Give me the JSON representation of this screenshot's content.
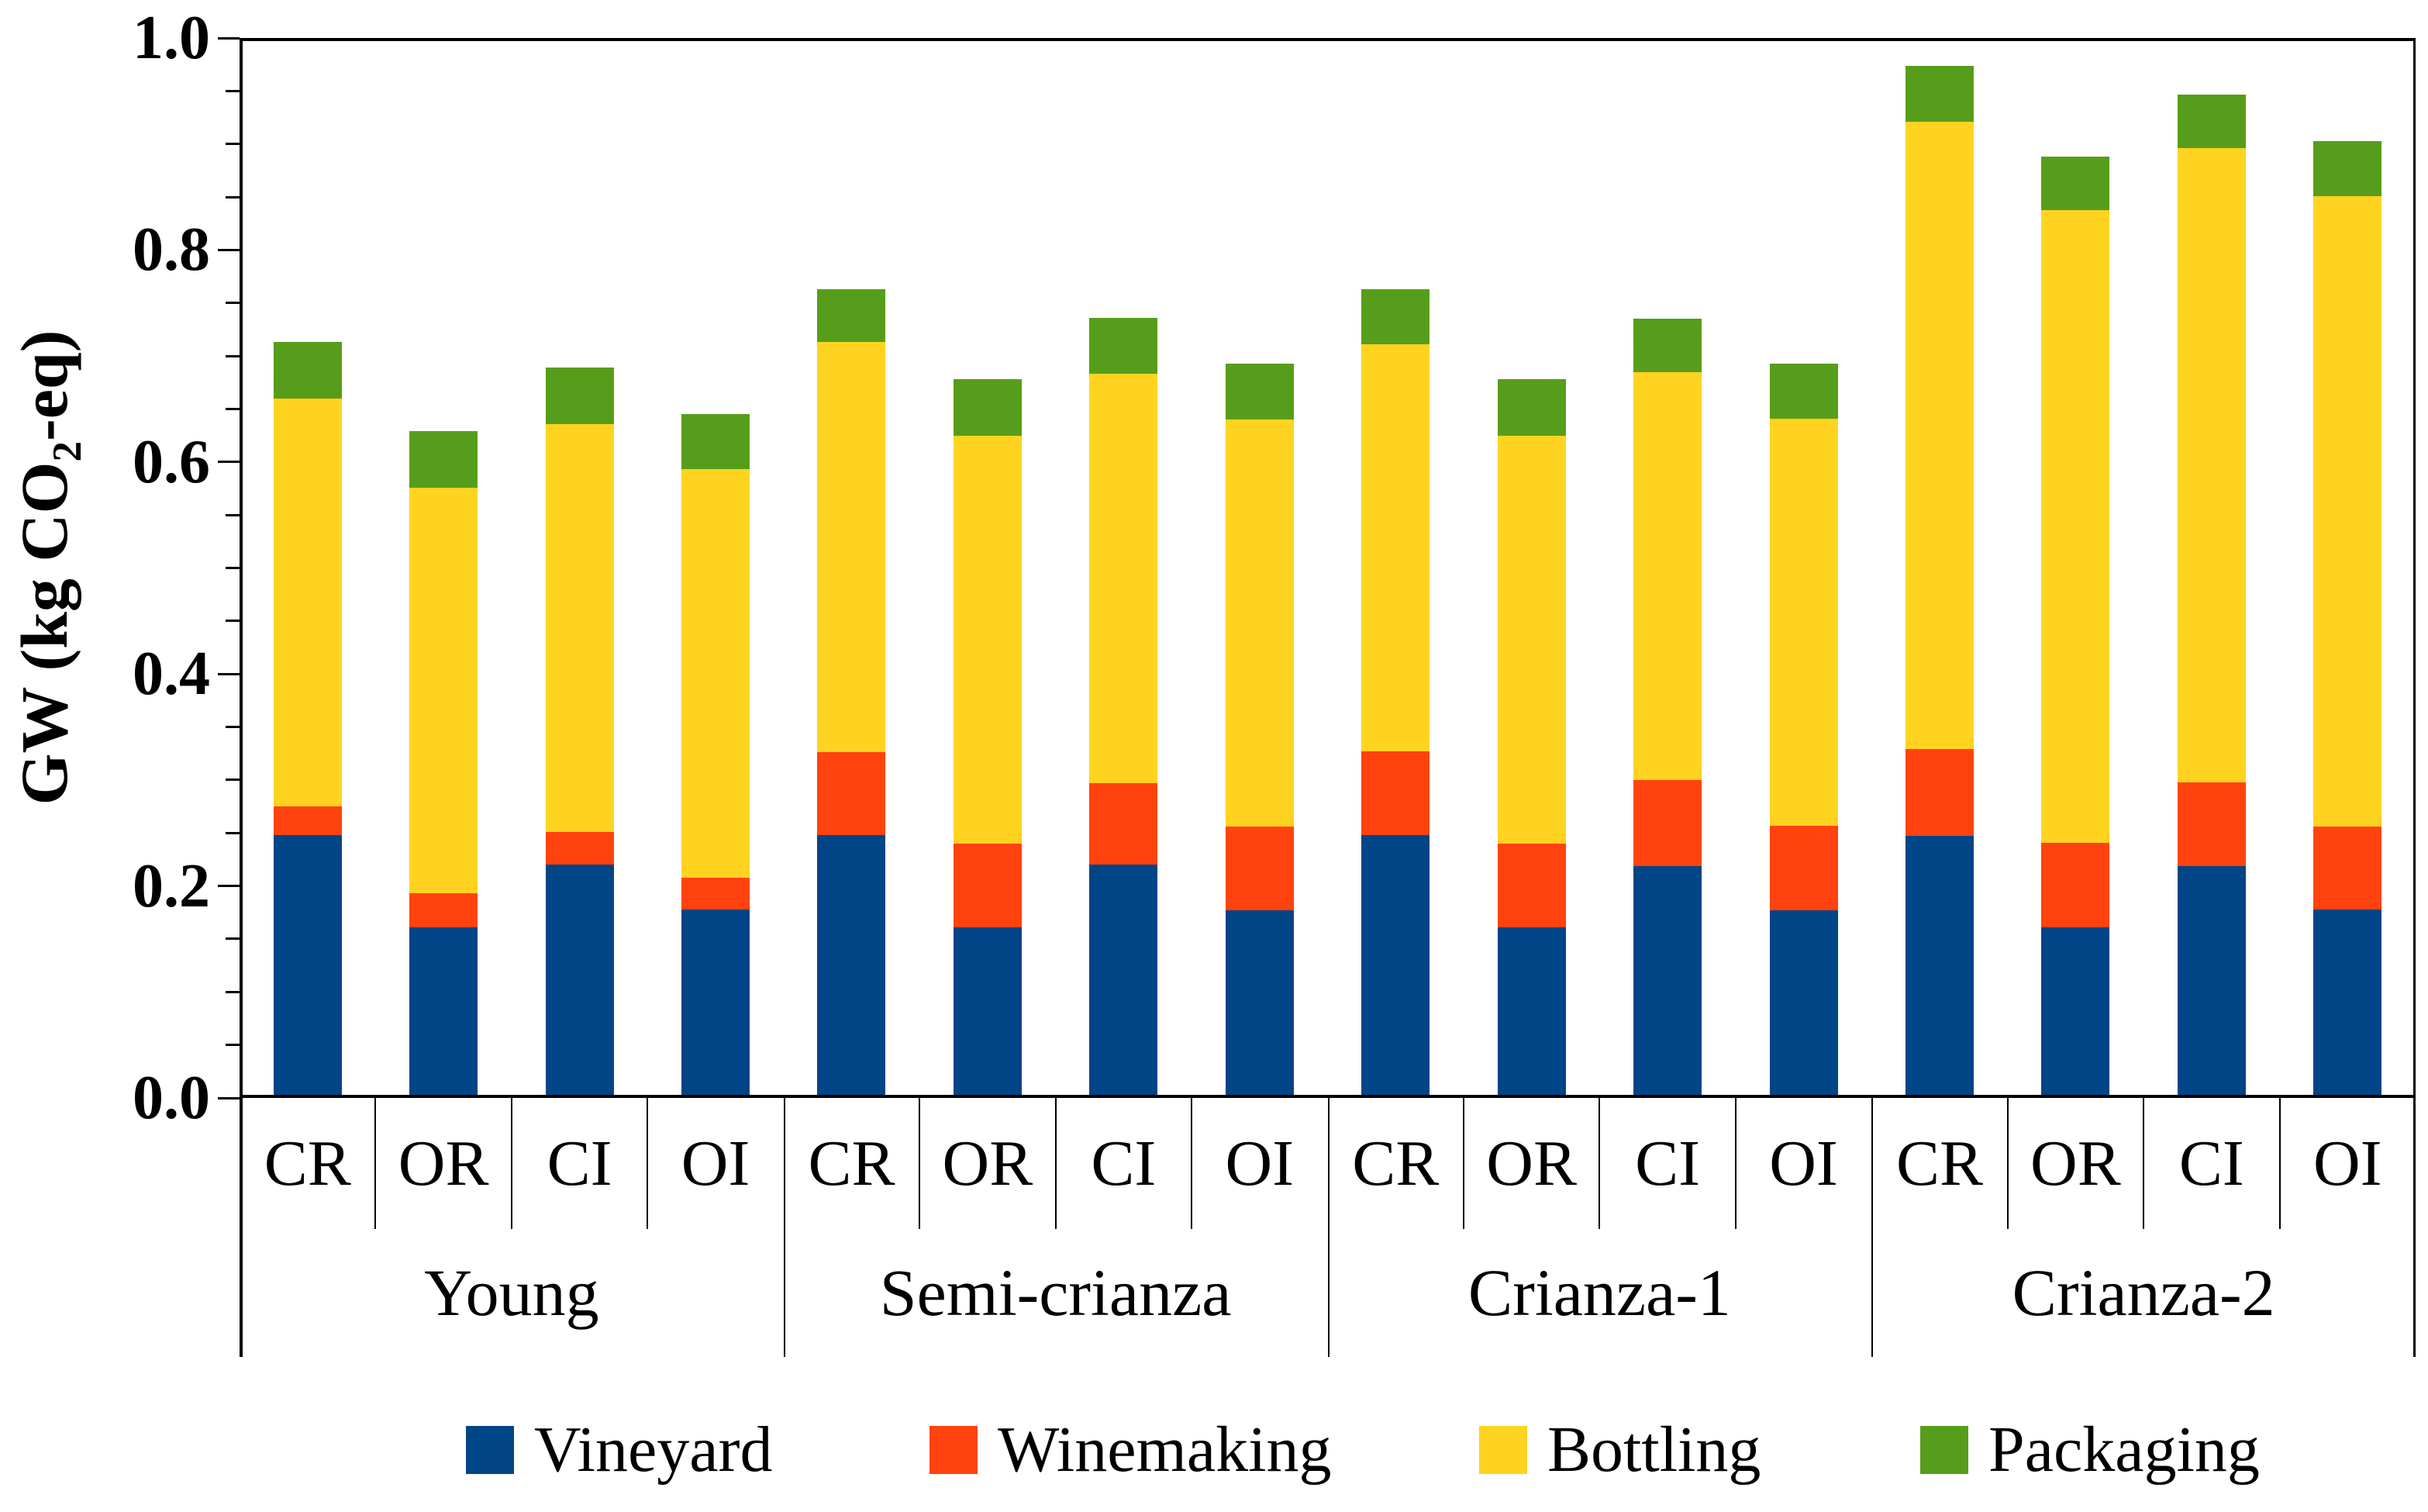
{
  "figure": {
    "background": "#ffffff",
    "axis_color": "#000000",
    "ylabel_prefix": "GW (kg CO",
    "ylabel_sub": "2",
    "ylabel_suffix": "-eq)"
  },
  "chart_data": {
    "type": "bar",
    "stacked": true,
    "title": "",
    "ylabel": "GW (kg CO2-eq)",
    "ylim": [
      0.0,
      1.0
    ],
    "ytick_major_values": [
      0.0,
      0.2,
      0.4,
      0.6,
      0.8,
      1.0
    ],
    "ytick_major_labels": [
      "0.0",
      "0.2",
      "0.4",
      "0.6",
      "0.8",
      "1.0"
    ],
    "ytick_minor_step": 0.05,
    "grid": false,
    "legend_position": "bottom",
    "groups": [
      "Young",
      "Semi-crianza",
      "Crianza-1",
      "Crianza-2"
    ],
    "categories_per_group": [
      "CR",
      "OR",
      "CI",
      "OI"
    ],
    "bar_labels": [
      "CR",
      "OR",
      "CI",
      "OI",
      "CR",
      "OR",
      "CI",
      "OI",
      "CR",
      "OR",
      "CI",
      "OI",
      "CR",
      "OR",
      "CI",
      "OI"
    ],
    "series": [
      {
        "name": "Vineyard",
        "color": "#004586",
        "values": [
          0.245,
          0.158,
          0.217,
          0.175,
          0.245,
          0.158,
          0.217,
          0.174,
          0.245,
          0.158,
          0.216,
          0.174,
          0.244,
          0.158,
          0.216,
          0.175
        ]
      },
      {
        "name": "Winemaking",
        "color": "#FF420E",
        "values": [
          0.027,
          0.032,
          0.031,
          0.03,
          0.078,
          0.079,
          0.077,
          0.079,
          0.079,
          0.079,
          0.081,
          0.08,
          0.082,
          0.08,
          0.079,
          0.078
        ]
      },
      {
        "name": "Bottling",
        "color": "#FFD320",
        "values": [
          0.385,
          0.383,
          0.385,
          0.385,
          0.387,
          0.385,
          0.386,
          0.384,
          0.384,
          0.385,
          0.385,
          0.384,
          0.592,
          0.597,
          0.598,
          0.595
        ]
      },
      {
        "name": "Packaging",
        "color": "#579D1C",
        "values": [
          0.053,
          0.053,
          0.053,
          0.052,
          0.05,
          0.053,
          0.053,
          0.053,
          0.052,
          0.053,
          0.05,
          0.052,
          0.053,
          0.05,
          0.051,
          0.052
        ]
      }
    ],
    "bar_totals": [
      0.71,
      0.626,
      0.686,
      0.642,
      0.76,
      0.675,
      0.733,
      0.69,
      0.76,
      0.675,
      0.732,
      0.69,
      0.971,
      0.885,
      0.944,
      0.9
    ]
  }
}
